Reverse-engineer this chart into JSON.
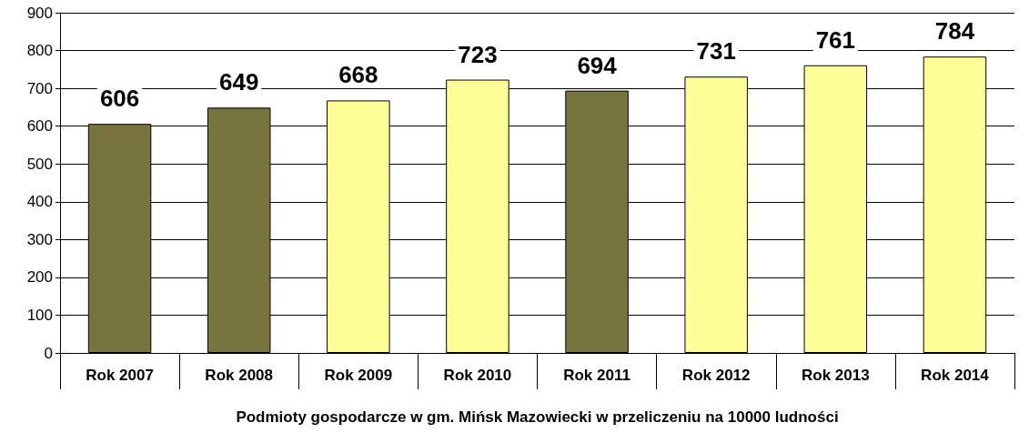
{
  "chart_data": {
    "type": "bar",
    "xlabel": "Podmioty gospodarcze w gm. Mińsk Mazowiecki w przeliczeniu na 10000 ludności",
    "categories": [
      "Rok 2007",
      "Rok 2008",
      "Rok 2009",
      "Rok 2010",
      "Rok 2011",
      "Rok 2012",
      "Rok 2013",
      "Rok 2014"
    ],
    "values": [
      606,
      649,
      668,
      723,
      694,
      731,
      761,
      784
    ],
    "colors": [
      "#77743f",
      "#77743f",
      "#ffff99",
      "#ffff99",
      "#77743f",
      "#ffff99",
      "#ffff99",
      "#ffff99"
    ],
    "ylim": [
      0,
      900
    ],
    "yticks": [
      0,
      100,
      200,
      300,
      400,
      500,
      600,
      700,
      800,
      900
    ],
    "grid": "y",
    "data_labels": true
  }
}
